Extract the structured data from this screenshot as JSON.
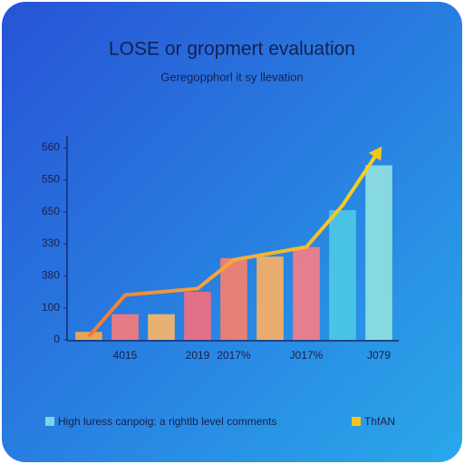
{
  "chart_data": {
    "type": "bar",
    "title": "LOSE or gropmert evaluation",
    "subtitle": "Geregopphorl it sy llevation",
    "categories": [
      null,
      "4015",
      null,
      "2019",
      "2017%",
      null,
      "J017%",
      null,
      "J079"
    ],
    "series": [
      {
        "name": "High luress canpoig: a rightlb level comments",
        "color": "#7fd3e3",
        "colors": [
          "#f5a94a",
          "#f77b7b",
          "#f7b56a",
          "#f26f80",
          "#f7806a",
          "#f9b064",
          "#f47e86",
          "#4cc8e6",
          "#8fe0e0"
        ],
        "values": [
          0.25,
          0.8,
          0.8,
          1.5,
          2.55,
          2.6,
          2.9,
          4.05,
          5.45
        ]
      },
      {
        "name": "ThfAN",
        "color": "#f5c518",
        "type": "line",
        "values": [
          0.1,
          1.4,
          1.5,
          1.6,
          2.5,
          2.7,
          2.9,
          4.2,
          5.9
        ]
      }
    ],
    "ylim": [
      0,
      6
    ],
    "yticks": [
      {
        "value": 0,
        "label": "0"
      },
      {
        "value": 1,
        "label": "100"
      },
      {
        "value": 2,
        "label": "380"
      },
      {
        "value": 3,
        "label": "330"
      },
      {
        "value": 4,
        "label": "650"
      },
      {
        "value": 5,
        "label": "550"
      },
      {
        "value": 6,
        "label": "560"
      }
    ]
  }
}
